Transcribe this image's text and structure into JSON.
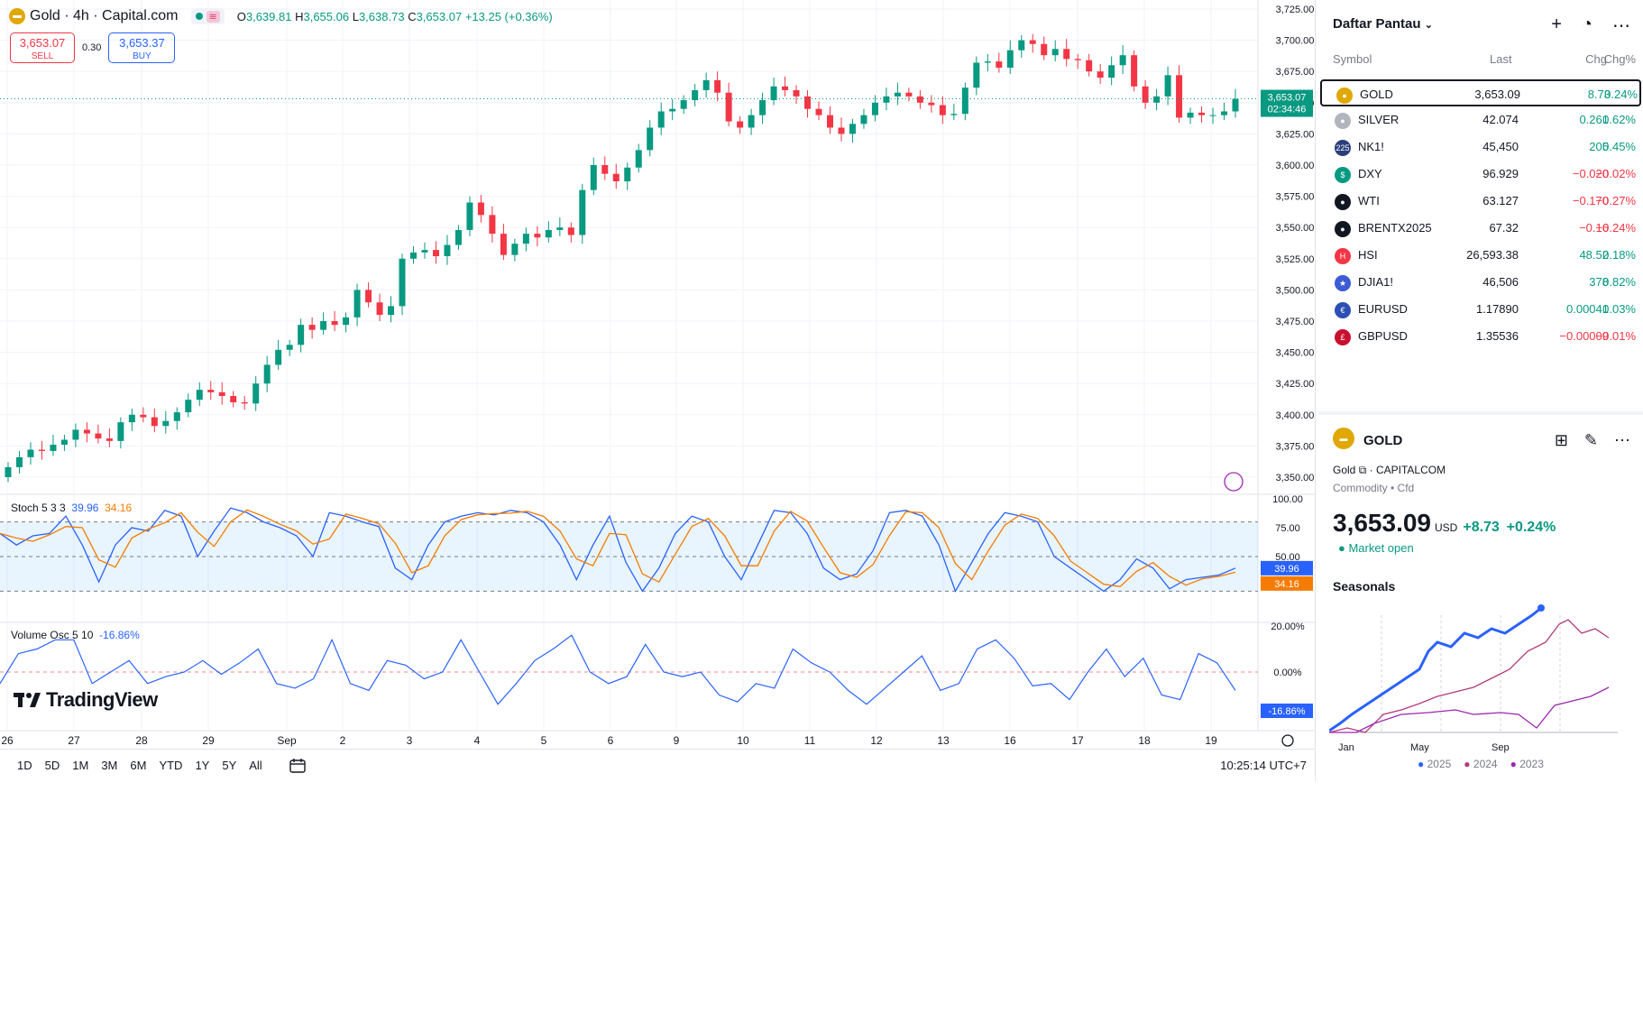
{
  "symbol": {
    "title": "Gold · 4h · Capital.com",
    "logo": "gold-bars-icon"
  },
  "ohlc": {
    "o_label": "O",
    "o": "3,639.81",
    "h_label": "H",
    "h": "3,655.06",
    "l_label": "L",
    "l": "3,638.73",
    "c_label": "C",
    "c": "3,653.07",
    "chg": "+13.25 (+0.36%)"
  },
  "trade": {
    "sell_price": "3,653.07",
    "sell_label": "SELL",
    "spread": "0.30",
    "buy_price": "3,653.37",
    "buy_label": "BUY"
  },
  "price_axis": [
    "3,725.00",
    "3,700.00",
    "3,675.00",
    "3,650.00",
    "3,625.00",
    "3,600.00",
    "3,575.00",
    "3,550.00",
    "3,525.00",
    "3,500.00",
    "3,475.00",
    "3,450.00",
    "3,425.00",
    "3,400.00",
    "3,375.00",
    "3,350.00"
  ],
  "last_price_tag": {
    "price": "3,653.07",
    "countdown": "02:34:46"
  },
  "stoch": {
    "label": "Stoch 5 3 3",
    "k": "39.96",
    "d": "34.16",
    "axis": [
      "100.00",
      "75.00",
      "50.00"
    ]
  },
  "volosc": {
    "label": "Volume Osc 5 10",
    "value": "-16.86%",
    "axis": [
      "20.00%",
      "0.00%"
    ]
  },
  "time_axis": [
    "26",
    "27",
    "28",
    "29",
    "Sep",
    "2",
    "3",
    "4",
    "5",
    "6",
    "9",
    "10",
    "11",
    "12",
    "13",
    "16",
    "17",
    "18",
    "19"
  ],
  "brand": "TradingView",
  "ranges": [
    "1D",
    "5D",
    "1M",
    "3M",
    "6M",
    "YTD",
    "1Y",
    "5Y",
    "All"
  ],
  "clock": "10:25:14 UTC+7",
  "watchlist": {
    "title": "Daftar Pantau",
    "columns": {
      "symbol": "Symbol",
      "last": "Last",
      "chg": "Chg",
      "chgp": "Chg%"
    },
    "rows": [
      {
        "sym": "GOLD",
        "last": "3,653.09",
        "chg": "8.73",
        "chgp": "0.24%",
        "dir": "up",
        "icon": "gold-icon",
        "color": "#e0a800",
        "g": "●"
      },
      {
        "sym": "SILVER",
        "last": "42.074",
        "chg": "0.261",
        "chgp": "0.62%",
        "dir": "up",
        "icon": "silver-icon",
        "color": "#b2b5be",
        "g": "●"
      },
      {
        "sym": "NK1!",
        "last": "45,450",
        "chg": "205",
        "chgp": "0.45%",
        "dir": "up",
        "icon": "nikkei-icon",
        "color": "#2a3f7a",
        "g": "225"
      },
      {
        "sym": "DXY",
        "last": "96.929",
        "chg": "−0.020",
        "chgp": "−0.02%",
        "dir": "dn",
        "icon": "dollar-icon",
        "color": "#089981",
        "g": "$"
      },
      {
        "sym": "WTI",
        "last": "63.127",
        "chg": "−0.170",
        "chgp": "−0.27%",
        "dir": "dn",
        "icon": "oil-drop-icon",
        "color": "#131722",
        "g": "●"
      },
      {
        "sym": "BRENTX2025",
        "last": "67.32",
        "chg": "−0.16",
        "chgp": "−0.24%",
        "dir": "dn",
        "icon": "oil-drop-icon",
        "color": "#131722",
        "g": "●"
      },
      {
        "sym": "HSI",
        "last": "26,593.38",
        "chg": "48.52",
        "chgp": "0.18%",
        "dir": "up",
        "icon": "hsi-icon",
        "color": "#f23645",
        "g": "H"
      },
      {
        "sym": "DJIA1!",
        "last": "46,506",
        "chg": "378",
        "chgp": "0.82%",
        "dir": "up",
        "icon": "us-flag-icon",
        "color": "#3c5bd6",
        "g": "★"
      },
      {
        "sym": "EURUSD",
        "last": "1.17890",
        "chg": "0.00041",
        "chgp": "0.03%",
        "dir": "up",
        "icon": "eu-flag-icon",
        "color": "#2b4fb3",
        "g": "€"
      },
      {
        "sym": "GBPUSD",
        "last": "1.35536",
        "chg": "−0.00009",
        "chgp": "−0.01%",
        "dir": "dn",
        "icon": "uk-flag-icon",
        "color": "#c8102e",
        "g": "£"
      }
    ]
  },
  "details": {
    "title": "GOLD",
    "sub_name": "Gold",
    "exchange": "· CAPITALCOM",
    "type": "Commodity • Cfd",
    "price": "3,653.09",
    "currency": "USD",
    "change": "+8.73",
    "change_pct": "+0.24%",
    "status": "Market open",
    "seasonals_title": "Seasonals",
    "seasonal_axis": [
      "Jan",
      "May",
      "Sep"
    ],
    "seasonal_legend": [
      "2025",
      "2024",
      "2023"
    ]
  },
  "colors": {
    "up": "#089981",
    "down": "#f23645",
    "accent": "#2962ff",
    "stoch_d": "#f57c00"
  }
}
